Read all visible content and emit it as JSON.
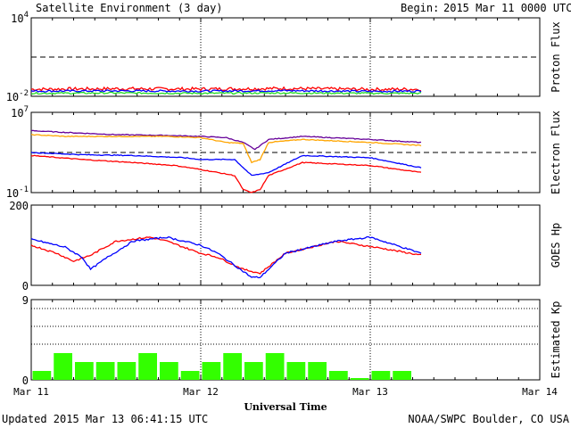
{
  "header": {
    "title": "Satellite Environment (3 day)",
    "begin_label": "Begin:",
    "begin_value": "2015 Mar 11 0000 UTC"
  },
  "footer": {
    "updated": "Updated 2015 Mar 13 06:41:15 UTC",
    "source": "NOAA/SWPC Boulder, CO USA"
  },
  "colors": {
    "red": "#ff0000",
    "blue": "#0000ff",
    "green": "#22dd22",
    "orange": "#ffa500",
    "purple": "#660099",
    "kp_bar": "#33ff00"
  },
  "chart_data": [
    {
      "id": "proton_flux",
      "type": "line",
      "ylabel": "Proton Flux",
      "y_scale": "log",
      "ylim": [
        0.01,
        10000
      ],
      "y_ticks": [
        {
          "base": "10",
          "exp": "4",
          "value": 10000
        },
        {
          "base": "10",
          "exp": "-2",
          "value": 0.01
        }
      ],
      "threshold": 10,
      "x_range_days": [
        0,
        3
      ],
      "series": [
        {
          "color": "red",
          "x": [
            0,
            0.5,
            1.0,
            1.5,
            2.0,
            2.3
          ],
          "y": [
            0.035,
            0.038,
            0.036,
            0.04,
            0.034,
            0.035
          ],
          "noise": 0.25
        },
        {
          "color": "blue",
          "x": [
            0,
            0.5,
            1.0,
            1.5,
            2.0,
            2.3
          ],
          "y": [
            0.025,
            0.026,
            0.025,
            0.027,
            0.024,
            0.025
          ],
          "noise": 0.15
        },
        {
          "color": "green",
          "x": [
            0,
            0.5,
            1.0,
            1.5,
            2.0,
            2.3
          ],
          "y": [
            0.017,
            0.018,
            0.017,
            0.018,
            0.017,
            0.017
          ],
          "noise": 0.12
        }
      ]
    },
    {
      "id": "electron_flux",
      "type": "line",
      "ylabel": "Electron Flux",
      "y_scale": "log",
      "ylim": [
        0.1,
        10000000
      ],
      "y_ticks": [
        {
          "base": "10",
          "exp": "7",
          "value": 10000000
        },
        {
          "base": "10",
          "exp": "-1",
          "value": 0.1
        }
      ],
      "threshold": 1000,
      "x_range_days": [
        0,
        3
      ],
      "series": [
        {
          "color": "purple",
          "x": [
            0,
            0.2,
            0.5,
            0.8,
            1.0,
            1.15,
            1.25,
            1.32,
            1.4,
            1.6,
            2.0,
            2.3
          ],
          "y": [
            150000,
            100000,
            60000,
            50000,
            40000,
            30000,
            10000,
            2000,
            20000,
            40000,
            20000,
            10000
          ]
        },
        {
          "color": "orange",
          "x": [
            0,
            0.2,
            0.5,
            0.8,
            1.0,
            1.15,
            1.25,
            1.3,
            1.35,
            1.4,
            1.6,
            2.0,
            2.3
          ],
          "y": [
            60000,
            40000,
            40000,
            40000,
            30000,
            10000,
            8000,
            100,
            200,
            10000,
            20000,
            10000,
            5000
          ]
        },
        {
          "color": "blue",
          "x": [
            0,
            0.3,
            0.6,
            0.9,
            1.0,
            1.2,
            1.3,
            1.4,
            1.6,
            2.0,
            2.3
          ],
          "y": [
            1000,
            600,
            500,
            300,
            200,
            200,
            5,
            10,
            500,
            300,
            30
          ]
        },
        {
          "color": "red",
          "x": [
            0,
            0.3,
            0.6,
            0.85,
            1.0,
            1.2,
            1.25,
            1.3,
            1.35,
            1.4,
            1.6,
            2.0,
            2.3
          ],
          "y": [
            500,
            200,
            100,
            50,
            20,
            5,
            0.2,
            0.1,
            0.2,
            5,
            100,
            50,
            10
          ]
        }
      ]
    },
    {
      "id": "goes_hp",
      "type": "line",
      "ylabel": "GOES Hp",
      "y_scale": "linear",
      "ylim": [
        0,
        200
      ],
      "y_ticks": [
        {
          "label": "200",
          "value": 200
        },
        {
          "label": "0",
          "value": 0
        }
      ],
      "x_range_days": [
        0,
        3
      ],
      "series": [
        {
          "color": "red",
          "x": [
            0,
            0.15,
            0.25,
            0.35,
            0.5,
            0.7,
            0.8,
            1.0,
            1.1,
            1.25,
            1.35,
            1.5,
            1.8,
            2.1,
            2.3
          ],
          "y": [
            100,
            80,
            60,
            75,
            110,
            120,
            110,
            80,
            70,
            40,
            30,
            80,
            110,
            90,
            75
          ]
        },
        {
          "color": "blue",
          "x": [
            0,
            0.2,
            0.3,
            0.35,
            0.45,
            0.6,
            0.8,
            1.0,
            1.1,
            1.2,
            1.3,
            1.35,
            1.5,
            1.8,
            2.0,
            2.3
          ],
          "y": [
            115,
            95,
            70,
            40,
            70,
            110,
            120,
            100,
            80,
            50,
            20,
            20,
            80,
            110,
            120,
            80
          ]
        }
      ]
    },
    {
      "id": "estimated_kp",
      "type": "bar",
      "ylabel": "Estimated Kp",
      "y_scale": "linear",
      "ylim": [
        0,
        9
      ],
      "y_ticks": [
        {
          "label": "9",
          "value": 9
        },
        {
          "label": "0",
          "value": 0
        }
      ],
      "dotted_levels": [
        4,
        6,
        8
      ],
      "bar_width_days": 0.125,
      "values": [
        1.0,
        3.0,
        2.0,
        2.0,
        2.0,
        3.0,
        2.0,
        1.0,
        2.0,
        3.0,
        2.0,
        3.0,
        2.0,
        2.0,
        1.0,
        0.2,
        1.0,
        1.0
      ]
    }
  ],
  "x_axis": {
    "label": "Universal Time",
    "ticks": [
      "Mar 11",
      "Mar 12",
      "Mar 13",
      "Mar 14"
    ]
  }
}
